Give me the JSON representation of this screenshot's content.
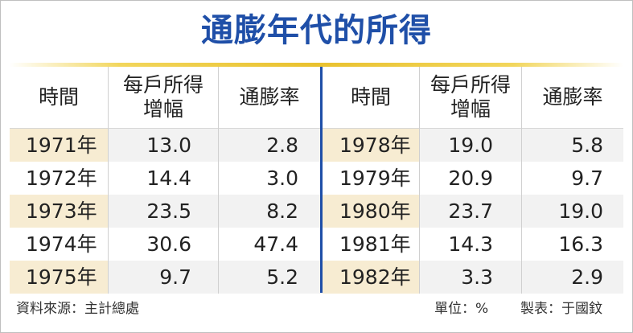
{
  "title": "通膨年代的所得",
  "headers": {
    "year": "時間",
    "income": "每戶所得\n增幅",
    "inflation": "通膨率"
  },
  "footer": {
    "source": "資料來源：主計總處",
    "unit": "單位：%",
    "maker": "製表：于國鈫"
  },
  "chart_data": {
    "type": "table",
    "columns": [
      "時間",
      "每戶所得增幅",
      "通膨率",
      "時間",
      "每戶所得增幅",
      "通膨率"
    ],
    "rows": [
      {
        "year_a": "1971年",
        "income_a": "13.0",
        "infl_a": "2.8",
        "year_b": "1978年",
        "income_b": "19.0",
        "infl_b": "5.8"
      },
      {
        "year_a": "1972年",
        "income_a": "14.4",
        "infl_a": "3.0",
        "year_b": "1979年",
        "income_b": "20.9",
        "infl_b": "9.7"
      },
      {
        "year_a": "1973年",
        "income_a": "23.5",
        "infl_a": "8.2",
        "year_b": "1980年",
        "income_b": "23.7",
        "infl_b": "19.0"
      },
      {
        "year_a": "1974年",
        "income_a": "30.6",
        "infl_a": "47.4",
        "year_b": "1981年",
        "income_b": "14.3",
        "infl_b": "16.3"
      },
      {
        "year_a": "1975年",
        "income_a": "9.7",
        "infl_a": "5.2",
        "year_b": "1982年",
        "income_b": "3.3",
        "infl_b": "2.9"
      }
    ]
  },
  "colors": {
    "title": "#1f4fa8",
    "rule": "#e9c12e",
    "center_line": "#1f4fa8",
    "shade": "#f2f2f2",
    "year_shade": "#f7ecd2"
  }
}
